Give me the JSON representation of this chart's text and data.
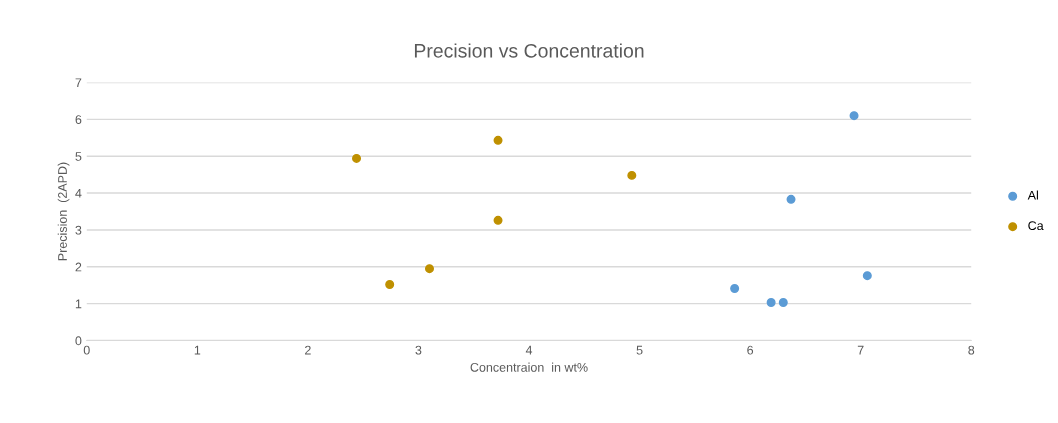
{
  "chart_data": {
    "type": "scatter",
    "title": "Precision vs Concentration",
    "xlabel": "Concentraion  in wt%",
    "ylabel": "Precision  (2APD)",
    "series": [
      {
        "name": "Al",
        "color": "#5b9bd5",
        "x": [
          5.86,
          6.19,
          6.3,
          6.37,
          6.94,
          7.06
        ],
        "values": [
          1.41,
          1.03,
          1.03,
          3.83,
          6.1,
          1.76
        ]
      },
      {
        "name": "Ca",
        "color": "#bf9000",
        "x": [
          2.44,
          2.74,
          3.1,
          3.72,
          3.72,
          4.93
        ],
        "values": [
          4.94,
          1.52,
          1.95,
          5.43,
          3.26,
          4.48
        ]
      }
    ],
    "xlim": [
      0,
      8
    ],
    "xticks": [
      0,
      1,
      2,
      3,
      4,
      5,
      6,
      7,
      8
    ],
    "ylim": [
      0,
      7
    ],
    "yticks": [
      0,
      1,
      2,
      3,
      4,
      5,
      6,
      7
    ],
    "grid": "y",
    "legend": "right",
    "marker": "circle"
  }
}
